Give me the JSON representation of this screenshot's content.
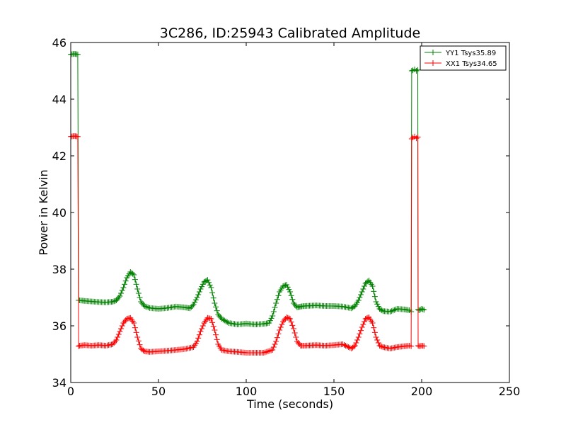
{
  "chart_data": {
    "type": "line",
    "title": "3C286, ID:25943 Calibrated Amplitude",
    "xlabel": "Time (seconds)",
    "ylabel": "Power in Kelvin",
    "xlim": [
      0,
      250
    ],
    "ylim": [
      34,
      46
    ],
    "xticks": [
      0,
      50,
      100,
      150,
      200,
      250
    ],
    "yticks": [
      34,
      36,
      38,
      40,
      42,
      44,
      46
    ],
    "grid": false,
    "legend_position": "top-right",
    "marker": "+",
    "series": [
      {
        "name": "YY1 Tsys35.89",
        "color": "#008000",
        "x": [
          0,
          2,
          4,
          4.5,
          5,
          8,
          12,
          16,
          20,
          24,
          26,
          28,
          30,
          32,
          34,
          36,
          38,
          40,
          42,
          45,
          50,
          55,
          60,
          65,
          68,
          70,
          72,
          74,
          76,
          78,
          80,
          82,
          84,
          86,
          90,
          95,
          100,
          105,
          110,
          113,
          115,
          117,
          119,
          121,
          123,
          125,
          127,
          129,
          131,
          133,
          140,
          145,
          150,
          155,
          160,
          162,
          164,
          166,
          168,
          170,
          172,
          174,
          176,
          178,
          182,
          186,
          190,
          193,
          194,
          194.3,
          195,
          196,
          197,
          197.8,
          198,
          198.5,
          200,
          202
        ],
        "values": [
          45.58,
          45.6,
          45.58,
          36.9,
          36.9,
          36.88,
          36.86,
          36.84,
          36.83,
          36.85,
          36.9,
          37.05,
          37.35,
          37.7,
          37.9,
          37.8,
          37.3,
          36.85,
          36.7,
          36.63,
          36.6,
          36.63,
          36.68,
          36.65,
          36.62,
          36.75,
          37.0,
          37.3,
          37.55,
          37.62,
          37.35,
          36.8,
          36.4,
          36.25,
          36.1,
          36.05,
          36.08,
          36.05,
          36.07,
          36.1,
          36.35,
          36.8,
          37.2,
          37.4,
          37.45,
          37.2,
          36.8,
          36.65,
          36.68,
          36.7,
          36.72,
          36.7,
          36.7,
          36.68,
          36.62,
          36.7,
          36.9,
          37.2,
          37.5,
          37.6,
          37.4,
          36.85,
          36.6,
          36.52,
          36.5,
          36.6,
          36.58,
          36.55,
          36.5,
          45.0,
          45.02,
          45.05,
          45.0,
          45.03,
          36.58,
          36.55,
          36.6,
          36.55
        ]
      },
      {
        "name": "XX1 Tsys34.65",
        "color": "#ff0000",
        "x": [
          0,
          2,
          4,
          4.5,
          5,
          8,
          12,
          16,
          20,
          24,
          26,
          28,
          30,
          32,
          34,
          36,
          38,
          40,
          42,
          45,
          50,
          55,
          60,
          65,
          70,
          72,
          74,
          76,
          78,
          80,
          82,
          84,
          86,
          90,
          95,
          100,
          105,
          110,
          115,
          117,
          119,
          121,
          123,
          125,
          127,
          129,
          131,
          133,
          140,
          145,
          150,
          155,
          160,
          162,
          164,
          166,
          168,
          170,
          172,
          174,
          176,
          178,
          182,
          186,
          190,
          193,
          194,
          194.3,
          195,
          196,
          197,
          197.8,
          198,
          198.5,
          200,
          202
        ],
        "values": [
          42.68,
          42.7,
          42.68,
          35.28,
          35.3,
          35.32,
          35.3,
          35.32,
          35.3,
          35.35,
          35.5,
          35.8,
          36.1,
          36.25,
          36.28,
          36.1,
          35.6,
          35.2,
          35.1,
          35.08,
          35.1,
          35.12,
          35.15,
          35.18,
          35.25,
          35.45,
          35.8,
          36.1,
          36.28,
          36.25,
          35.85,
          35.35,
          35.15,
          35.1,
          35.08,
          35.05,
          35.05,
          35.05,
          35.15,
          35.45,
          35.85,
          36.15,
          36.3,
          36.25,
          35.9,
          35.45,
          35.3,
          35.3,
          35.32,
          35.3,
          35.32,
          35.35,
          35.2,
          35.3,
          35.6,
          35.95,
          36.25,
          36.3,
          36.1,
          35.6,
          35.3,
          35.25,
          35.2,
          35.25,
          35.28,
          35.3,
          35.28,
          42.6,
          42.65,
          42.68,
          42.62,
          42.66,
          35.3,
          35.28,
          35.3,
          35.28
        ]
      }
    ]
  }
}
